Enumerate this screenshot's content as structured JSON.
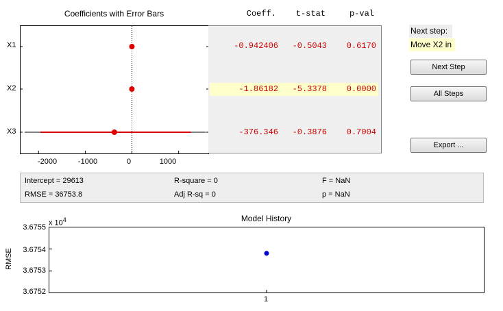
{
  "coef_plot": {
    "title": "Coefficients with Error Bars",
    "y_labels": [
      "X1",
      "X2",
      "X3"
    ],
    "x_ticks": [
      "-2000",
      "-1000",
      "0",
      "1000"
    ]
  },
  "table": {
    "headers": {
      "coeff": "Coeff.",
      "tstat": "t-stat",
      "pval": "p-val"
    },
    "rows": [
      {
        "name": "X1",
        "coeff": "-0.942406",
        "tstat": "-0.5043",
        "pval": "0.6170",
        "coeff_value": -0.942406,
        "ci": [
          -4.5,
          2.6
        ],
        "highlighted": false
      },
      {
        "name": "X2",
        "coeff": "-1.86182",
        "tstat": "-5.3378",
        "pval": "0.0000",
        "coeff_value": -1.86182,
        "ci": [
          -2.6,
          -1.1
        ],
        "highlighted": true
      },
      {
        "name": "X3",
        "coeff": "-376.346",
        "tstat": "-0.3876",
        "pval": "0.7004",
        "coeff_value": -376.346,
        "ci": [
          -1960,
          1260
        ],
        "highlighted": false
      }
    ],
    "value_color": "#cc0000",
    "highlight_color": "#ffffcc"
  },
  "next_step": {
    "label": "Next step:",
    "value": "Move X2 in"
  },
  "buttons": {
    "next_step": "Next Step",
    "all_steps": "All Steps",
    "export": "Export ..."
  },
  "stats": {
    "intercept": "Intercept = 29613",
    "rmse": "RMSE = 36753.8",
    "rsquare": "R-square = 0",
    "adj_rsq": "Adj R-sq = 0",
    "f": "F = NaN",
    "p": "p = NaN"
  },
  "history": {
    "title": "Model History",
    "ylabel": "RMSE",
    "exponent": "x 10",
    "exponent_power": "4",
    "y_ticks": [
      "3.6755",
      "3.6754",
      "3.6753",
      "3.6752"
    ],
    "x_ticks": [
      "1"
    ]
  },
  "chart_data": [
    {
      "type": "scatter",
      "title": "Coefficients with Error Bars",
      "categories": [
        "X1",
        "X2",
        "X3"
      ],
      "values": [
        -0.942406,
        -1.86182,
        -376.346
      ],
      "intervals": [
        [
          -4.5,
          2.6
        ],
        [
          -2.6,
          -1.1
        ],
        [
          -1960,
          1260
        ]
      ],
      "xlim": [
        -2400,
        1650
      ],
      "x_ticks": [
        -2000,
        -1000,
        0,
        1000
      ],
      "marker_color": "#dd0000",
      "zero_line": "dotted"
    },
    {
      "type": "scatter",
      "title": "Model History",
      "ylabel": "RMSE",
      "x": [
        1
      ],
      "y": [
        36753.8
      ],
      "xlim": [
        0,
        2
      ],
      "ylim": [
        36752,
        36755
      ],
      "y_ticks": [
        36752,
        36753,
        36754,
        36755
      ],
      "marker_color": "#0000cc"
    }
  ]
}
